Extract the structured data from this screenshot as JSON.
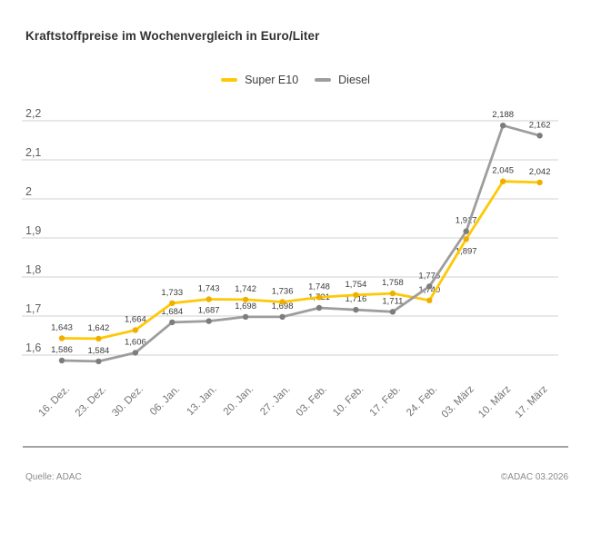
{
  "header": {
    "title": "Kraftstoffpreise im Wochenvergleich in Euro/Liter"
  },
  "footer": {
    "source": "Quelle: ADAC",
    "copyright": "©ADAC 03.2026"
  },
  "colors": {
    "super_e10_yellow": "#FFC805",
    "diesel_gray": "#9D9D9D",
    "grid": "#D2D2D2",
    "text_dark": "#333333",
    "text_muted": "#757575"
  },
  "chart_data": {
    "type": "line",
    "title": "Kraftstoffpreise im Wochenvergleich in Euro/Liter",
    "unit": "Euro/Liter",
    "categories": [
      "16. Dez.",
      "23. Dez.",
      "30. Dez.",
      "06. Jan.",
      "13. Jan.",
      "20. Jan.",
      "27. Jan.",
      "03. Feb.",
      "10. Feb.",
      "17. Feb.",
      "24. Feb.",
      "03. März",
      "10. März",
      "17. März"
    ],
    "series": [
      {
        "name": "Super E10",
        "color": "#FFC805",
        "marker_color": "#EFAF00",
        "values": [
          1.643,
          1.642,
          1.664,
          1.733,
          1.743,
          1.742,
          1.736,
          1.748,
          1.754,
          1.758,
          1.74,
          1.897,
          2.045,
          2.042
        ]
      },
      {
        "name": "Diesel",
        "color": "#9D9D9D",
        "marker_color": "#7D7D7D",
        "values": [
          1.586,
          1.584,
          1.606,
          1.684,
          1.687,
          1.698,
          1.698,
          1.721,
          1.716,
          1.711,
          1.776,
          1.917,
          2.188,
          2.162
        ]
      }
    ],
    "yticks": [
      1.6,
      1.7,
      1.8,
      1.9,
      2.0,
      2.1,
      2.2
    ],
    "ytick_labels": [
      "1,6",
      "1,7",
      "1,8",
      "1,9",
      "2",
      "2,1",
      "2,2"
    ],
    "ylim": [
      1.6,
      2.2
    ],
    "xlabel": "",
    "ylabel": "",
    "grid": "horizontal",
    "legend_position": "top-center",
    "data_labels": true,
    "decimal_style": "comma"
  }
}
